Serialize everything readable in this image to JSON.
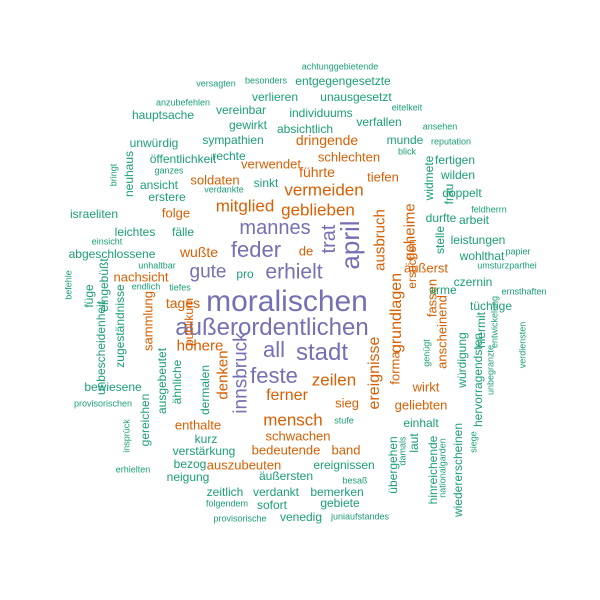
{
  "colors": {
    "purple": "#7570b3",
    "orange": "#d95f02",
    "green": "#1b9e77"
  },
  "words": [
    {
      "text": "moralischen",
      "color": "purple"
    },
    {
      "text": "außerordentlichen",
      "color": "purple"
    },
    {
      "text": "april",
      "color": "purple"
    },
    {
      "text": "stadt",
      "color": "purple"
    },
    {
      "text": "erhielt",
      "color": "purple"
    },
    {
      "text": "feder",
      "color": "purple"
    },
    {
      "text": "mannes",
      "color": "purple"
    },
    {
      "text": "all",
      "color": "purple"
    },
    {
      "text": "feste",
      "color": "purple"
    },
    {
      "text": "gute",
      "color": "purple"
    },
    {
      "text": "trat",
      "color": "purple"
    },
    {
      "text": "innsbruck",
      "color": "purple"
    },
    {
      "text": "mitglied",
      "color": "orange"
    },
    {
      "text": "geblieben",
      "color": "orange"
    },
    {
      "text": "vermeiden",
      "color": "orange"
    },
    {
      "text": "mensch",
      "color": "orange"
    },
    {
      "text": "zeilen",
      "color": "orange"
    },
    {
      "text": "ereignisse",
      "color": "orange"
    },
    {
      "text": "grundlagen",
      "color": "orange"
    },
    {
      "text": "geheime",
      "color": "orange"
    },
    {
      "text": "ausbruch",
      "color": "orange"
    },
    {
      "text": "denken",
      "color": "orange"
    },
    {
      "text": "ferner",
      "color": "orange"
    },
    {
      "text": "höhere",
      "color": "orange"
    },
    {
      "text": "wußte",
      "color": "orange"
    },
    {
      "text": "tages",
      "color": "orange"
    },
    {
      "text": "nachsicht",
      "color": "orange"
    },
    {
      "text": "führte",
      "color": "orange"
    },
    {
      "text": "dringende",
      "color": "orange"
    },
    {
      "text": "soldaten",
      "color": "orange"
    },
    {
      "text": "verwendet",
      "color": "orange"
    },
    {
      "text": "schlechten",
      "color": "orange"
    },
    {
      "text": "folge",
      "color": "orange"
    },
    {
      "text": "fälle",
      "color": "green"
    },
    {
      "text": "de",
      "color": "orange"
    },
    {
      "text": "pro",
      "color": "green"
    },
    {
      "text": "bedeutende",
      "color": "orange"
    },
    {
      "text": "auszubeuten",
      "color": "orange"
    },
    {
      "text": "schwachen",
      "color": "orange"
    },
    {
      "text": "enthalte",
      "color": "orange"
    },
    {
      "text": "publikum",
      "color": "orange"
    },
    {
      "text": "sammlung",
      "color": "orange"
    },
    {
      "text": "band",
      "color": "orange"
    },
    {
      "text": "sieg",
      "color": "orange"
    },
    {
      "text": "wirkt",
      "color": "orange"
    },
    {
      "text": "äußerst",
      "color": "orange"
    },
    {
      "text": "anscheinend",
      "color": "orange"
    },
    {
      "text": "fassen",
      "color": "orange"
    },
    {
      "text": "forma",
      "color": "orange"
    },
    {
      "text": "geliebten",
      "color": "orange"
    },
    {
      "text": "ersuchen",
      "color": "orange"
    },
    {
      "text": "tiefen",
      "color": "orange"
    },
    {
      "text": "sinkt",
      "color": "green"
    },
    {
      "text": "rechte",
      "color": "green"
    },
    {
      "text": "sympathien",
      "color": "green"
    },
    {
      "text": "öffentlichkeit",
      "color": "green"
    },
    {
      "text": "ansicht",
      "color": "green"
    },
    {
      "text": "erstere",
      "color": "green"
    },
    {
      "text": "verdankte",
      "color": "green"
    },
    {
      "text": "ganzes",
      "color": "green"
    },
    {
      "text": "unwürdig",
      "color": "green"
    },
    {
      "text": "hauptsache",
      "color": "green"
    },
    {
      "text": "anzubefehlen",
      "color": "green"
    },
    {
      "text": "vereinbar",
      "color": "green"
    },
    {
      "text": "gewirkt",
      "color": "green"
    },
    {
      "text": "verlieren",
      "color": "green"
    },
    {
      "text": "absichtlich",
      "color": "green"
    },
    {
      "text": "individuums",
      "color": "green"
    },
    {
      "text": "verfallen",
      "color": "green"
    },
    {
      "text": "unausgesetzt",
      "color": "green"
    },
    {
      "text": "entgegengesetzte",
      "color": "green"
    },
    {
      "text": "versagten",
      "color": "green"
    },
    {
      "text": "besonders",
      "color": "green"
    },
    {
      "text": "achtunggebietende",
      "color": "green"
    },
    {
      "text": "munde",
      "color": "green"
    },
    {
      "text": "blick",
      "color": "green"
    },
    {
      "text": "eitelkeit",
      "color": "green"
    },
    {
      "text": "ansehen",
      "color": "green"
    },
    {
      "text": "reputation",
      "color": "green"
    },
    {
      "text": "fertigen",
      "color": "green"
    },
    {
      "text": "wilden",
      "color": "green"
    },
    {
      "text": "doppelt",
      "color": "green"
    },
    {
      "text": "frau",
      "color": "green"
    },
    {
      "text": "widmete",
      "color": "green"
    },
    {
      "text": "durfte",
      "color": "green"
    },
    {
      "text": "arbeit",
      "color": "green"
    },
    {
      "text": "feldherrn",
      "color": "green"
    },
    {
      "text": "stelle",
      "color": "green"
    },
    {
      "text": "leistungen",
      "color": "green"
    },
    {
      "text": "wohlthat",
      "color": "green"
    },
    {
      "text": "papier",
      "color": "green"
    },
    {
      "text": "umsturzparthei",
      "color": "green"
    },
    {
      "text": "czernin",
      "color": "green"
    },
    {
      "text": "arme",
      "color": "green"
    },
    {
      "text": "ernsthaften",
      "color": "green"
    },
    {
      "text": "tüchtige",
      "color": "green"
    },
    {
      "text": "hiermit",
      "color": "green"
    },
    {
      "text": "entwickelung",
      "color": "green"
    },
    {
      "text": "verdiensten",
      "color": "green"
    },
    {
      "text": "unbegranzte",
      "color": "green"
    },
    {
      "text": "hervorragendsten",
      "color": "green"
    },
    {
      "text": "würdigung",
      "color": "green"
    },
    {
      "text": "genügt",
      "color": "green"
    },
    {
      "text": "einhalt",
      "color": "green"
    },
    {
      "text": "laut",
      "color": "green"
    },
    {
      "text": "damals",
      "color": "green"
    },
    {
      "text": "übergehen",
      "color": "green"
    },
    {
      "text": "hinreichende",
      "color": "green"
    },
    {
      "text": "nationalgarden",
      "color": "green"
    },
    {
      "text": "wiedererscheinen",
      "color": "green"
    },
    {
      "text": "siege",
      "color": "green"
    },
    {
      "text": "israeliten",
      "color": "green"
    },
    {
      "text": "leichtes",
      "color": "green"
    },
    {
      "text": "einsicht",
      "color": "green"
    },
    {
      "text": "abgeschlossene",
      "color": "green"
    },
    {
      "text": "unhaltbar",
      "color": "green"
    },
    {
      "text": "endlich",
      "color": "green"
    },
    {
      "text": "tiefes",
      "color": "green"
    },
    {
      "text": "befehle",
      "color": "green"
    },
    {
      "text": "füge",
      "color": "green"
    },
    {
      "text": "eingebüßt",
      "color": "green"
    },
    {
      "text": "zugeständnisse",
      "color": "green"
    },
    {
      "text": "unbescheidenheit",
      "color": "green"
    },
    {
      "text": "bewiesene",
      "color": "green"
    },
    {
      "text": "provisorischen",
      "color": "green"
    },
    {
      "text": "ausgebeutet",
      "color": "green"
    },
    {
      "text": "ähnliche",
      "color": "green"
    },
    {
      "text": "dermalen",
      "color": "green"
    },
    {
      "text": "kurz",
      "color": "green"
    },
    {
      "text": "verstärkung",
      "color": "green"
    },
    {
      "text": "neigung",
      "color": "green"
    },
    {
      "text": "bezog",
      "color": "green"
    },
    {
      "text": "zeitlich",
      "color": "green"
    },
    {
      "text": "verdankt",
      "color": "green"
    },
    {
      "text": "bemerken",
      "color": "green"
    },
    {
      "text": "ereignissen",
      "color": "green"
    },
    {
      "text": "äußersten",
      "color": "green"
    },
    {
      "text": "sofort",
      "color": "green"
    },
    {
      "text": "gebiete",
      "color": "green"
    },
    {
      "text": "venedig",
      "color": "green"
    },
    {
      "text": "juniaufstandes",
      "color": "green"
    },
    {
      "text": "provisorische",
      "color": "green"
    },
    {
      "text": "folgendem",
      "color": "green"
    },
    {
      "text": "besaß",
      "color": "green"
    },
    {
      "text": "stufe",
      "color": "green"
    },
    {
      "text": "insprück",
      "color": "green"
    },
    {
      "text": "erhielten",
      "color": "green"
    },
    {
      "text": "gereichen",
      "color": "green"
    },
    {
      "text": "neuhaus",
      "color": "green"
    },
    {
      "text": "bringt",
      "color": "green"
    }
  ]
}
